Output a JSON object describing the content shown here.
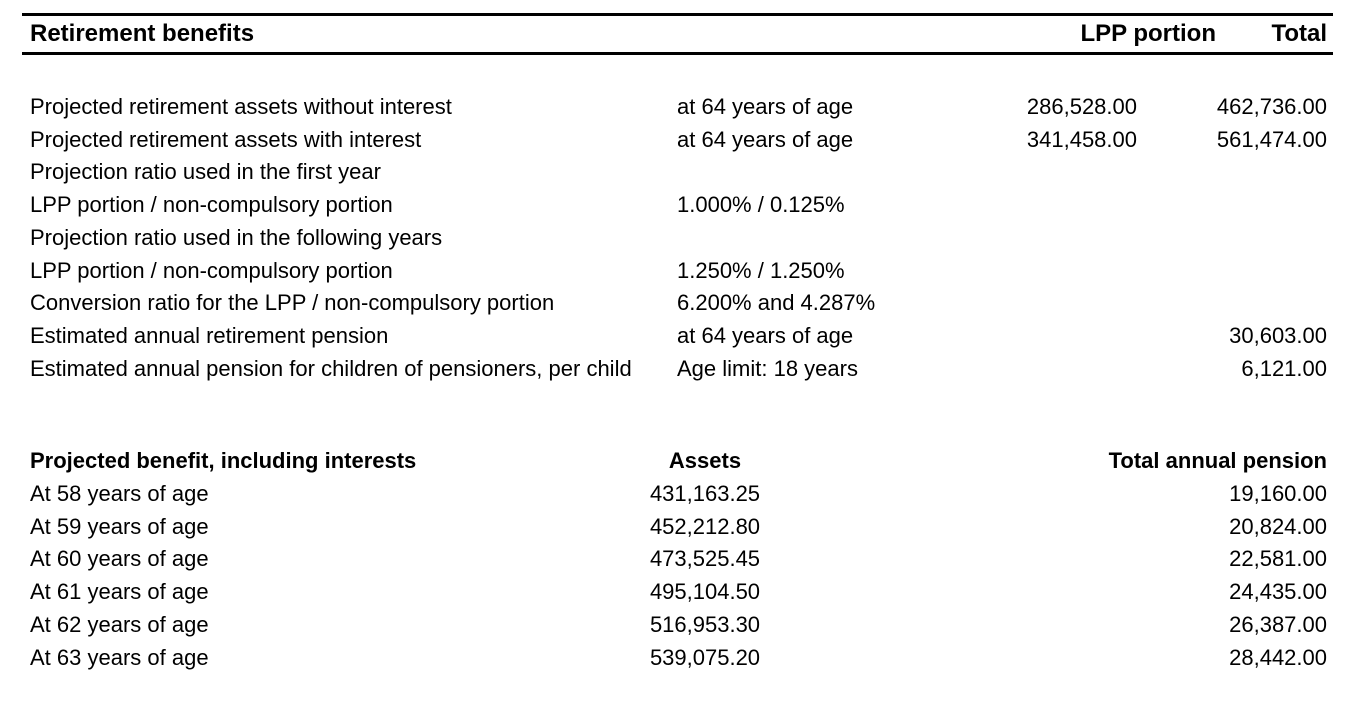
{
  "page": {
    "background_color": "#ffffff",
    "text_color": "#000000",
    "rule_color": "#000000"
  },
  "retirement_table": {
    "title": "Retirement benefits",
    "columns": {
      "lpp": "LPP portion",
      "total": "Total"
    },
    "rows": [
      {
        "label": "Projected retirement assets without interest",
        "detail": "at 64 years of age",
        "lpp": "286,528.00",
        "total": "462,736.00"
      },
      {
        "label": "Projected retirement assets with interest",
        "detail": "at 64 years of age",
        "lpp": "341,458.00",
        "total": "561,474.00"
      },
      {
        "label": "Projection ratio used in the first year",
        "detail": "",
        "lpp": "",
        "total": ""
      },
      {
        "label": "LPP portion / non-compulsory portion",
        "detail": "1.000% / 0.125%",
        "lpp": "",
        "total": ""
      },
      {
        "label": "Projection ratio used in the following years",
        "detail": "",
        "lpp": "",
        "total": ""
      },
      {
        "label": "LPP portion / non-compulsory portion",
        "detail": "1.250% / 1.250%",
        "lpp": "",
        "total": ""
      },
      {
        "label": "Conversion ratio for the LPP / non-compulsory portion",
        "detail": "6.200% and 4.287%",
        "lpp": "",
        "total": ""
      },
      {
        "label": "Estimated annual retirement pension",
        "detail": "at 64 years of age",
        "lpp": "",
        "total": "30,603.00"
      },
      {
        "label": "Estimated annual pension for children of pensioners, per child",
        "detail": "Age limit: 18 years",
        "lpp": "",
        "total": "6,121.00"
      }
    ]
  },
  "projection_table": {
    "title": "Projected benefit, including interests",
    "columns": {
      "assets": "Assets",
      "pension": "Total annual pension"
    },
    "rows": [
      {
        "label": "At 58 years of age",
        "assets": "431,163.25",
        "pension": "19,160.00"
      },
      {
        "label": "At 59 years of age",
        "assets": "452,212.80",
        "pension": "20,824.00"
      },
      {
        "label": "At 60 years of age",
        "assets": "473,525.45",
        "pension": "22,581.00"
      },
      {
        "label": "At 61 years of age",
        "assets": "495,104.50",
        "pension": "24,435.00"
      },
      {
        "label": "At 62 years of age",
        "assets": "516,953.30",
        "pension": "26,387.00"
      },
      {
        "label": "At 63 years of age",
        "assets": "539,075.20",
        "pension": "28,442.00"
      }
    ]
  }
}
